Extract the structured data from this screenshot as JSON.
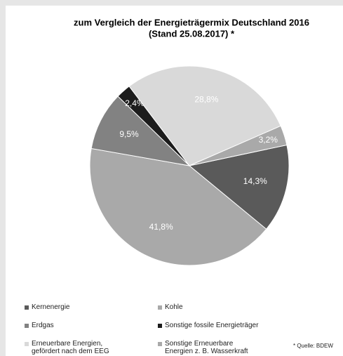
{
  "chart_data": {
    "type": "pie",
    "title": "zum Vergleich der Energieträgermix Deutschland 2016",
    "subtitle": "(Stand 25.08.2017) *",
    "categories": [
      "Kernenergie",
      "Kohle",
      "Erdgas",
      "Sonstige fossile Energieträger",
      "Erneuerbare Energien, gefördert nach dem EEG",
      "Sonstige Erneuerbare Energien z. B. Wasserkraft"
    ],
    "values": [
      14.3,
      41.8,
      9.5,
      2.4,
      28.8,
      3.2
    ],
    "value_labels": [
      "14,3%",
      "41,8%",
      "9,5%",
      "2,4%",
      "28,8%",
      "3,2%"
    ],
    "colors": [
      "#5a5a5a",
      "#a9a9a9",
      "#828282",
      "#1c1c1c",
      "#d9d9d9",
      "#a9a9a9"
    ],
    "legend": "bottom",
    "note": "* Quelle: BDEW"
  }
}
